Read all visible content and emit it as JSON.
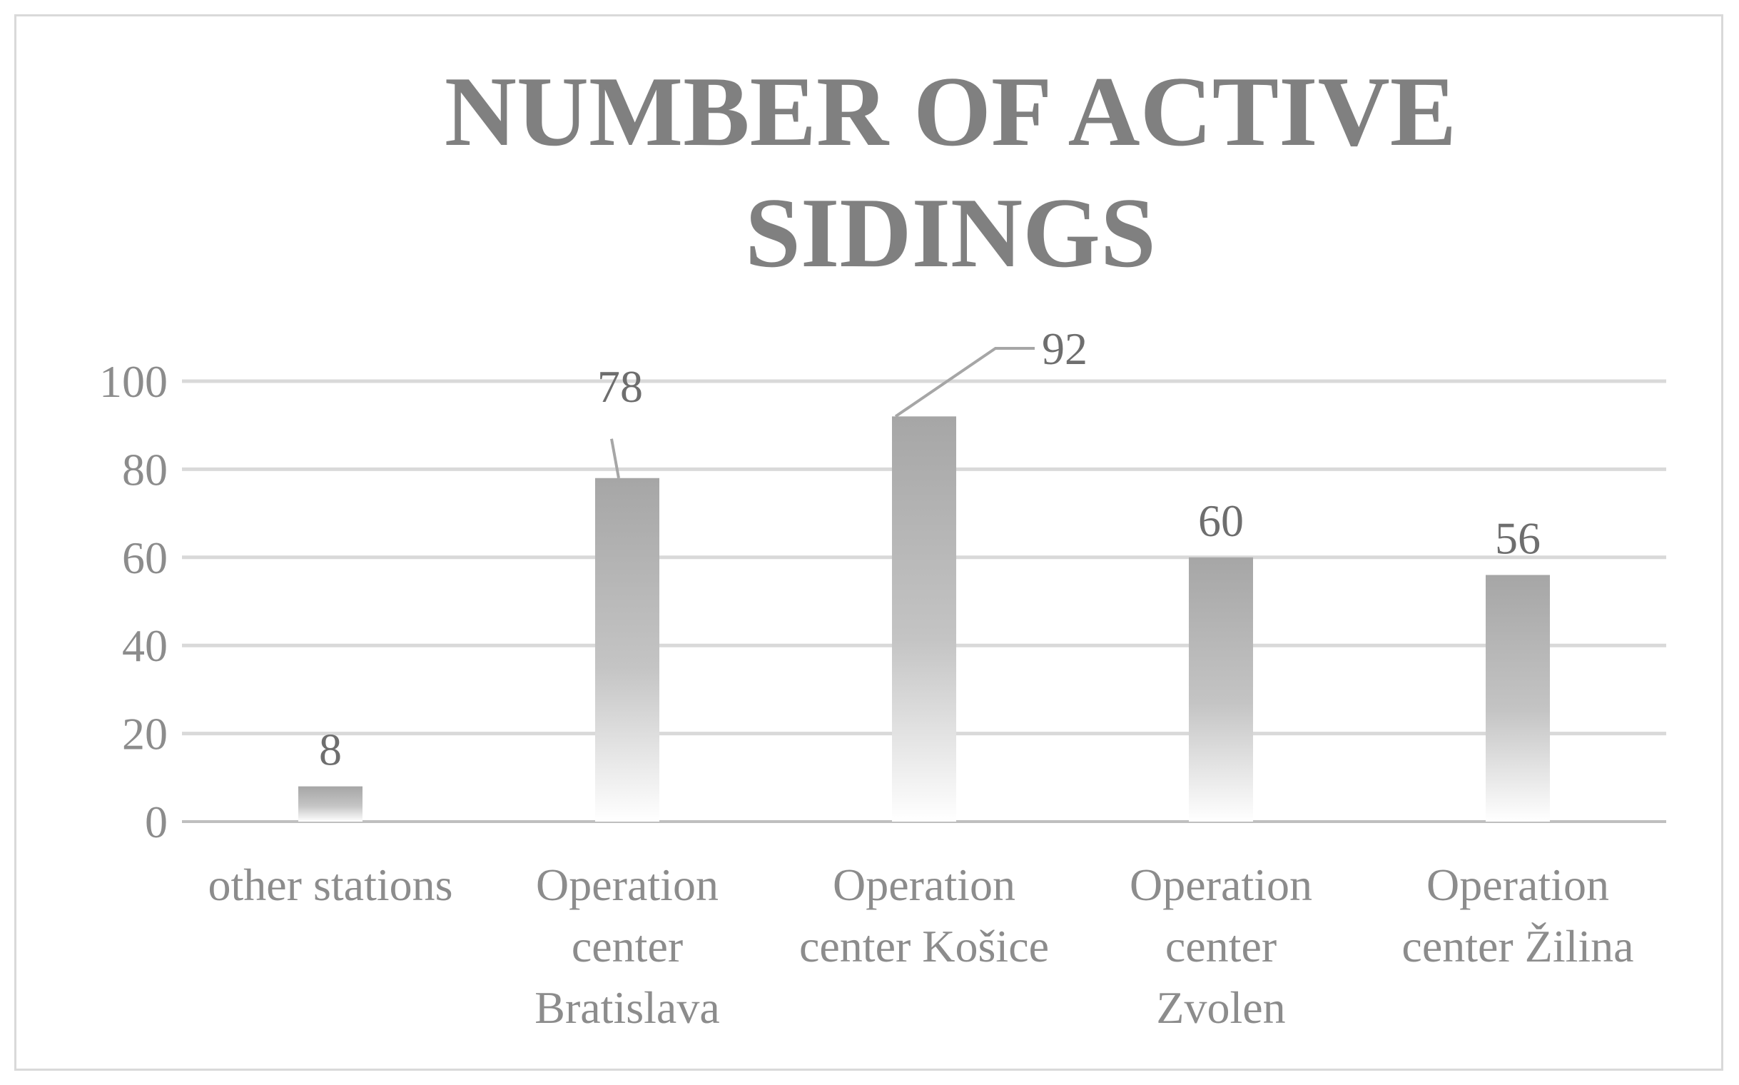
{
  "chart_data": {
    "type": "bar",
    "title": "NUMBER OF ACTIVE SIDINGS",
    "title_lines": [
      "NUMBER OF ACTIVE",
      "SIDINGS"
    ],
    "categories": [
      "other stations",
      "Operation center Bratislava",
      "Operation center Košice",
      "Operation center Zvolen",
      "Operation center Žilina"
    ],
    "category_lines": [
      [
        "other stations"
      ],
      [
        "Operation",
        "center",
        "Bratislava"
      ],
      [
        "Operation",
        "center Košice"
      ],
      [
        "Operation",
        "center",
        "Zvolen"
      ],
      [
        "Operation",
        "center Žilina"
      ]
    ],
    "values": [
      8,
      78,
      92,
      60,
      56
    ],
    "data_labels": [
      "8",
      "78",
      "92",
      "60",
      "56"
    ],
    "ylim": [
      0,
      100
    ],
    "yticks": [
      0,
      20,
      40,
      60,
      80,
      100
    ],
    "ytick_labels": [
      "0",
      "20",
      "40",
      "60",
      "80",
      "100"
    ],
    "xlabel": "",
    "ylabel": "",
    "grid": true,
    "legend": "none",
    "colors": {
      "bar": "#a6a6a6",
      "bar_fade": "#ffffff",
      "gridline": "#d9d9d9",
      "axis_line": "#bfbfbf",
      "title": "#808080",
      "text": "#8c8c8c",
      "data_label": "#6e6e6e",
      "leader_line": "#a6a6a6",
      "frame": "#d9d9d9"
    }
  }
}
